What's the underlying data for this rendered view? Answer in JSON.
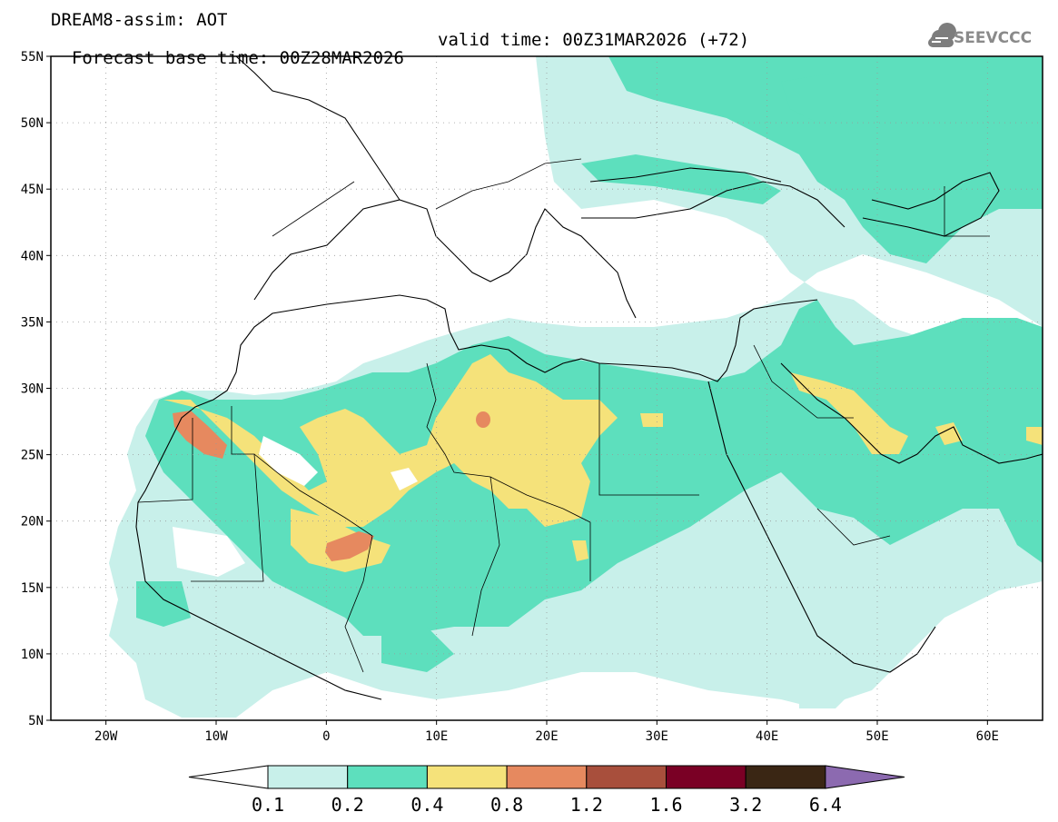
{
  "header": {
    "line1": "DREAM8-assim: AOT",
    "line2_base": "Forecast base time: 00Z28MAR2026",
    "line2_valid": "valid time: 00Z31MAR2026 (+72)"
  },
  "logo": {
    "text": "SEEVCCC",
    "icon": "cloud-icon"
  },
  "map": {
    "lon_range": [
      -25,
      65
    ],
    "lat_range": [
      5,
      55
    ],
    "lat_ticks": [
      {
        "value": 55,
        "label": "55N"
      },
      {
        "value": 50,
        "label": "50N"
      },
      {
        "value": 45,
        "label": "45N"
      },
      {
        "value": 40,
        "label": "40N"
      },
      {
        "value": 35,
        "label": "35N"
      },
      {
        "value": 30,
        "label": "30N"
      },
      {
        "value": 25,
        "label": "25N"
      },
      {
        "value": 20,
        "label": "20N"
      },
      {
        "value": 15,
        "label": "15N"
      },
      {
        "value": 10,
        "label": "10N"
      },
      {
        "value": 5,
        "label": "5N"
      }
    ],
    "lon_ticks": [
      {
        "value": -20,
        "label": "20W"
      },
      {
        "value": -10,
        "label": "10W"
      },
      {
        "value": 0,
        "label": "0"
      },
      {
        "value": 10,
        "label": "10E"
      },
      {
        "value": 20,
        "label": "20E"
      },
      {
        "value": 30,
        "label": "30E"
      },
      {
        "value": 40,
        "label": "40E"
      },
      {
        "value": 50,
        "label": "50E"
      },
      {
        "value": 60,
        "label": "60E"
      }
    ],
    "grid": true
  },
  "colorbar": {
    "levels": [
      "0.1",
      "0.2",
      "0.4",
      "0.8",
      "1.2",
      "1.6",
      "3.2",
      "6.4"
    ],
    "colors": [
      "#ffffff",
      "#c8f0ea",
      "#5ddfbd",
      "#f5e27a",
      "#e6895f",
      "#a84f3c",
      "#7a0025",
      "#3a2614",
      "#8c6ab0"
    ]
  }
}
